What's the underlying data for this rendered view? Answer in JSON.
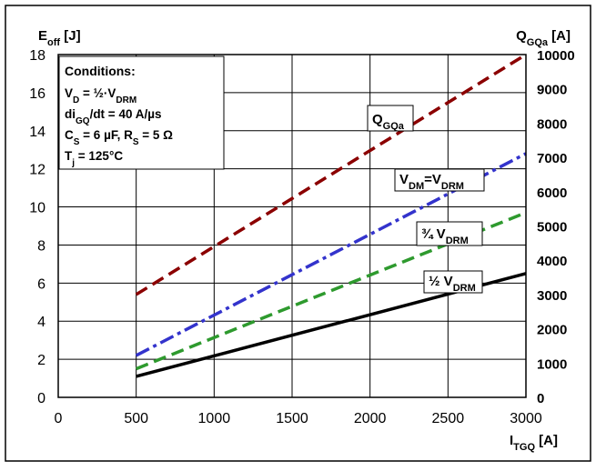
{
  "chart_data": {
    "type": "line",
    "x_axis": {
      "label": "I",
      "label_sub": "TGQ",
      "unit": " [A]",
      "range": [
        0,
        3000
      ],
      "ticks": [
        0,
        500,
        1000,
        1500,
        2000,
        2500,
        3000
      ]
    },
    "y_axis_left": {
      "label": "E",
      "label_sub": "off",
      "unit": "  [J]",
      "range": [
        0,
        18
      ],
      "ticks": [
        0,
        2,
        4,
        6,
        8,
        10,
        12,
        14,
        16,
        18
      ]
    },
    "y_axis_right": {
      "label": "Q",
      "label_sub": "GQa",
      "unit": " [A]",
      "range": [
        0,
        10000
      ],
      "ticks": [
        0,
        1000,
        2000,
        3000,
        4000,
        5000,
        6000,
        7000,
        8000,
        9000,
        10000
      ]
    },
    "grid": true,
    "conditions": {
      "title": "Conditions:",
      "lines": [
        [
          {
            "t": "V"
          },
          {
            "t": "D",
            "sub": true
          },
          {
            "t": " = ½·V"
          },
          {
            "t": "DRM",
            "sub": true
          }
        ],
        [
          {
            "t": "di"
          },
          {
            "t": "GQ",
            "sub": true
          },
          {
            "t": "/dt = 40 A/µs"
          }
        ],
        [
          {
            "t": "C"
          },
          {
            "t": "S",
            "sub": true
          },
          {
            "t": " = 6 µF, R"
          },
          {
            "t": "S",
            "sub": true
          },
          {
            "t": " = 5 Ω"
          }
        ],
        [
          {
            "t": "T"
          },
          {
            "t": "j",
            "sub": true
          },
          {
            "t": " = 125°C"
          }
        ]
      ]
    },
    "series": [
      {
        "id": "qgqa",
        "axis": "right",
        "color": "#8b0000",
        "dash": "dashed",
        "x": [
          500,
          3000
        ],
        "y": [
          3000,
          10000
        ],
        "label_parts": [
          {
            "t": "Q"
          },
          {
            "t": "GQa",
            "sub": true
          }
        ]
      },
      {
        "id": "vdm-vdrm",
        "axis": "left",
        "color": "#3333cc",
        "dash": "dash-dot",
        "x": [
          500,
          3000
        ],
        "y": [
          2.2,
          12.8
        ],
        "label_parts": [
          {
            "t": "V"
          },
          {
            "t": "DM",
            "sub": true
          },
          {
            "t": "=V"
          },
          {
            "t": "DRM",
            "sub": true
          }
        ]
      },
      {
        "id": "three-quarter-vdrm",
        "axis": "left",
        "color": "#2e9a2e",
        "dash": "dashed",
        "x": [
          500,
          3000
        ],
        "y": [
          1.5,
          9.7
        ],
        "label_parts": [
          {
            "t": "¾ V"
          },
          {
            "t": "DRM",
            "sub": true
          }
        ]
      },
      {
        "id": "half-vdrm",
        "axis": "left",
        "color": "#000000",
        "dash": "solid",
        "x": [
          500,
          3000
        ],
        "y": [
          1.1,
          6.5
        ],
        "label_parts": [
          {
            "t": "½ V"
          },
          {
            "t": "DRM",
            "sub": true
          }
        ]
      }
    ]
  }
}
